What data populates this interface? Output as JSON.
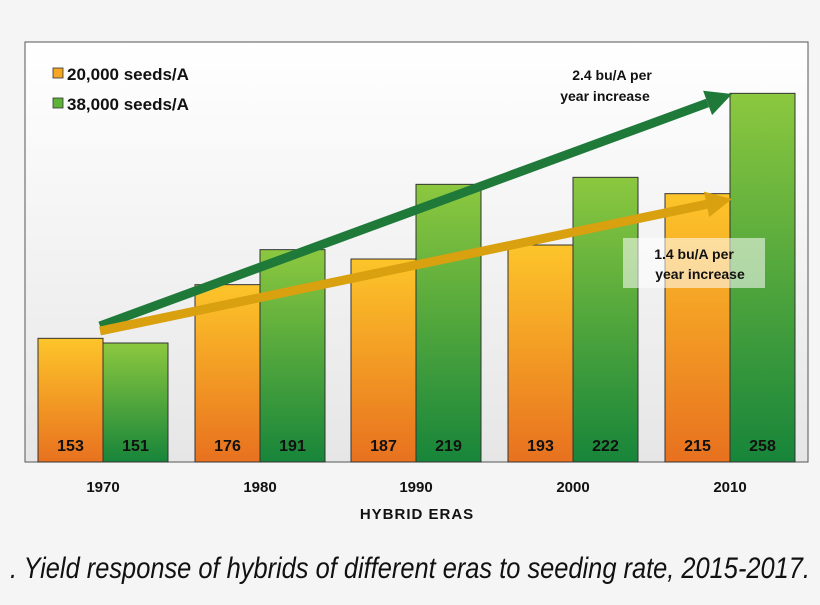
{
  "chart_data": {
    "type": "bar",
    "title": "",
    "xlabel": "HYBRID ERAS",
    "ylabel": "",
    "ylim": [
      100,
      280
    ],
    "grid": false,
    "legend_placement": "top-left",
    "categories": [
      "1970",
      "1980",
      "1990",
      "2000",
      "2010"
    ],
    "series": [
      {
        "name": "20,000 seeds/A",
        "values": [
          153,
          176,
          187,
          193,
          215
        ],
        "color": "#f5a623"
      },
      {
        "name": "38,000 seeds/A",
        "values": [
          151,
          191,
          219,
          222,
          258
        ],
        "color": "#5db33a"
      }
    ],
    "annotations": [
      {
        "line1": "2.4 bu/A per",
        "line2": "year increase",
        "color": "#1f7a3a"
      },
      {
        "line1": "1.4 bu/A per",
        "line2": "year increase",
        "color": "#d9a010"
      }
    ]
  },
  "caption": ". Yield response of hybrids of different eras to seeding rate, 2015-2017."
}
